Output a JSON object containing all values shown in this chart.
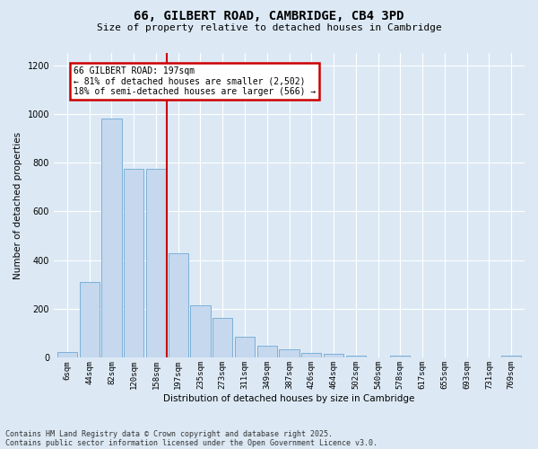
{
  "title_line1": "66, GILBERT ROAD, CAMBRIDGE, CB4 3PD",
  "title_line2": "Size of property relative to detached houses in Cambridge",
  "xlabel": "Distribution of detached houses by size in Cambridge",
  "ylabel": "Number of detached properties",
  "categories": [
    "6sqm",
    "44sqm",
    "82sqm",
    "120sqm",
    "158sqm",
    "197sqm",
    "235sqm",
    "273sqm",
    "311sqm",
    "349sqm",
    "387sqm",
    "426sqm",
    "464sqm",
    "502sqm",
    "540sqm",
    "578sqm",
    "617sqm",
    "655sqm",
    "693sqm",
    "731sqm",
    "769sqm"
  ],
  "values": [
    25,
    310,
    980,
    775,
    775,
    430,
    215,
    165,
    85,
    50,
    33,
    20,
    18,
    10,
    0,
    8,
    0,
    0,
    0,
    0,
    8
  ],
  "bar_color": "#c5d8ee",
  "bar_edge_color": "#6fa8d5",
  "vline_color": "#cc0000",
  "annotation_text": "66 GILBERT ROAD: 197sqm\n← 81% of detached houses are smaller (2,502)\n18% of semi-detached houses are larger (566) →",
  "annotation_box_edgecolor": "#cc0000",
  "ylim": [
    0,
    1250
  ],
  "yticks": [
    0,
    200,
    400,
    600,
    800,
    1000,
    1200
  ],
  "bg_color": "#dce9f5",
  "plot_bg_color": "#dce9f5",
  "grid_color": "#ffffff",
  "footer_line1": "Contains HM Land Registry data © Crown copyright and database right 2025.",
  "footer_line2": "Contains public sector information licensed under the Open Government Licence v3.0."
}
